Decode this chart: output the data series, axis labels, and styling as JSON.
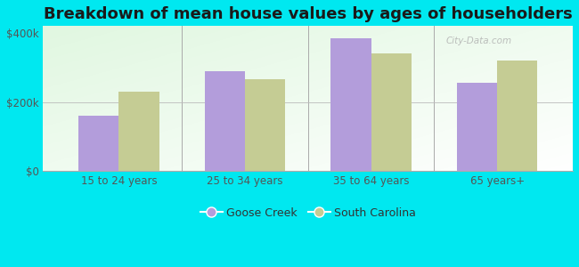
{
  "title": "Breakdown of mean house values by ages of householders",
  "categories": [
    "15 to 24 years",
    "25 to 34 years",
    "35 to 64 years",
    "65 years+"
  ],
  "goose_creek": [
    160000,
    290000,
    385000,
    255000
  ],
  "south_carolina": [
    230000,
    265000,
    340000,
    320000
  ],
  "goose_creek_color": "#b39ddb",
  "south_carolina_color": "#c5cc94",
  "background_color": "#00e8f0",
  "ylim": [
    0,
    420000
  ],
  "yticks": [
    0,
    200000,
    400000
  ],
  "ytick_labels": [
    "$0",
    "$200k",
    "$400k"
  ],
  "legend_goose_creek": "Goose Creek",
  "legend_south_carolina": "South Carolina",
  "title_fontsize": 13,
  "bar_width": 0.32,
  "watermark": "City-Data.com"
}
